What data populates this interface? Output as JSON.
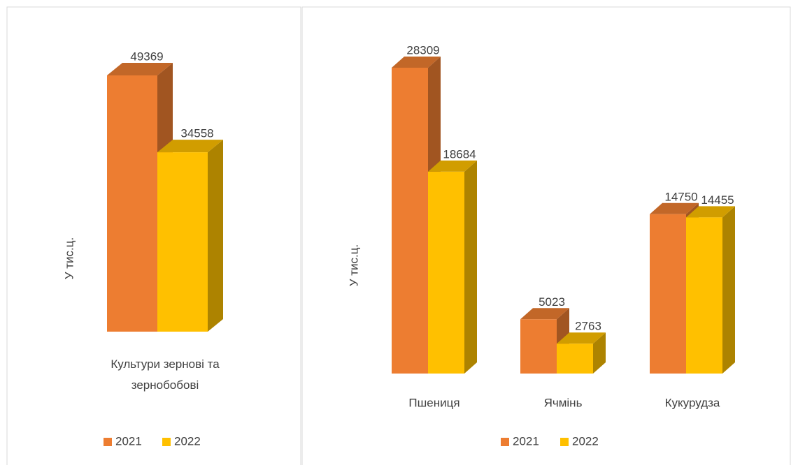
{
  "chart_data": [
    {
      "type": "bar3d",
      "y_label": "У тис.ц.",
      "categories": [
        "Культури зернові та зернобобові"
      ],
      "series": [
        {
          "name": "2021",
          "color": "#ED7D31",
          "values": [
            49369
          ]
        },
        {
          "name": "2022",
          "color": "#FFC000",
          "values": [
            34558
          ]
        }
      ]
    },
    {
      "type": "bar3d",
      "y_label": "У тис.ц.",
      "categories": [
        "Пшениця",
        "Ячмінь",
        "Кукурудза"
      ],
      "series": [
        {
          "name": "2021",
          "color": "#ED7D31",
          "values": [
            28309,
            5023,
            14750
          ]
        },
        {
          "name": "2022",
          "color": "#FFC000",
          "values": [
            18684,
            2763,
            14455
          ]
        }
      ]
    }
  ]
}
